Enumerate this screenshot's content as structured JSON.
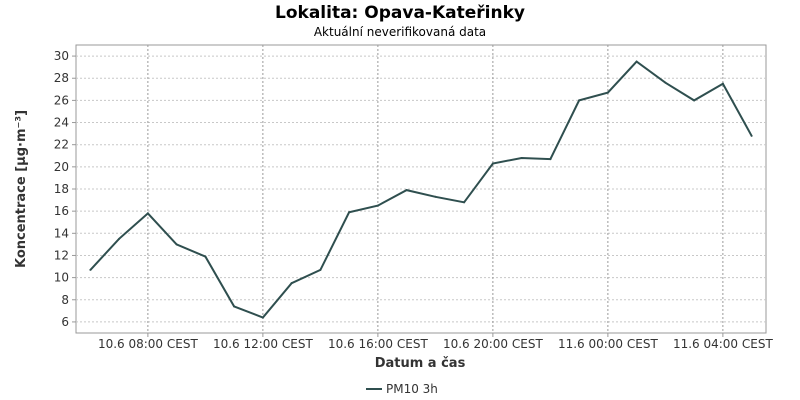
{
  "chart_data": {
    "type": "line",
    "title": "Lokalita: Opava-Kateřinky",
    "subtitle": "Aktuální neverifikovaná data",
    "xlabel": "Datum a čas",
    "ylabel": "Koncentrace [µg·m⁻³]",
    "ylim": [
      5,
      31
    ],
    "yticks": [
      6,
      8,
      10,
      12,
      14,
      16,
      18,
      20,
      22,
      24,
      26,
      28,
      30
    ],
    "xlim": [
      "10.6 05:30",
      "11.6 05:30"
    ],
    "xticks": [
      {
        "t": "10.6 08:00",
        "label": "10.6 08:00 CEST"
      },
      {
        "t": "10.6 12:00",
        "label": "10.6 12:00 CEST"
      },
      {
        "t": "10.6 16:00",
        "label": "10.6 16:00 CEST"
      },
      {
        "t": "10.6 20:00",
        "label": "10.6 20:00 CEST"
      },
      {
        "t": "11.6 00:00",
        "label": "11.6 00:00 CEST"
      },
      {
        "t": "11.6 04:00",
        "label": "11.6 04:00 CEST"
      }
    ],
    "grid": true,
    "legend_position": "bottom",
    "series": [
      {
        "name": "PM10 3h",
        "color": "#2f4f4f",
        "points": [
          {
            "t": "10.6 06:00",
            "y": 10.7
          },
          {
            "t": "10.6 07:00",
            "y": 13.5
          },
          {
            "t": "10.6 08:00",
            "y": 15.8
          },
          {
            "t": "10.6 09:00",
            "y": 13.0
          },
          {
            "t": "10.6 10:00",
            "y": 11.9
          },
          {
            "t": "10.6 11:00",
            "y": 7.4
          },
          {
            "t": "10.6 12:00",
            "y": 6.4
          },
          {
            "t": "10.6 13:00",
            "y": 9.5
          },
          {
            "t": "10.6 14:00",
            "y": 10.7
          },
          {
            "t": "10.6 15:00",
            "y": 15.9
          },
          {
            "t": "10.6 16:00",
            "y": 16.5
          },
          {
            "t": "10.6 17:00",
            "y": 17.9
          },
          {
            "t": "10.6 18:00",
            "y": 17.3
          },
          {
            "t": "10.6 19:00",
            "y": 16.8
          },
          {
            "t": "10.6 20:00",
            "y": 20.3
          },
          {
            "t": "10.6 21:00",
            "y": 20.8
          },
          {
            "t": "10.6 22:00",
            "y": 20.7
          },
          {
            "t": "10.6 23:00",
            "y": 26.0
          },
          {
            "t": "11.6 00:00",
            "y": 26.7
          },
          {
            "t": "11.6 01:00",
            "y": 29.5
          },
          {
            "t": "11.6 02:00",
            "y": 27.6
          },
          {
            "t": "11.6 03:00",
            "y": 26.0
          },
          {
            "t": "11.6 04:00",
            "y": 27.5
          },
          {
            "t": "11.6 05:00",
            "y": 22.8
          }
        ]
      }
    ]
  }
}
